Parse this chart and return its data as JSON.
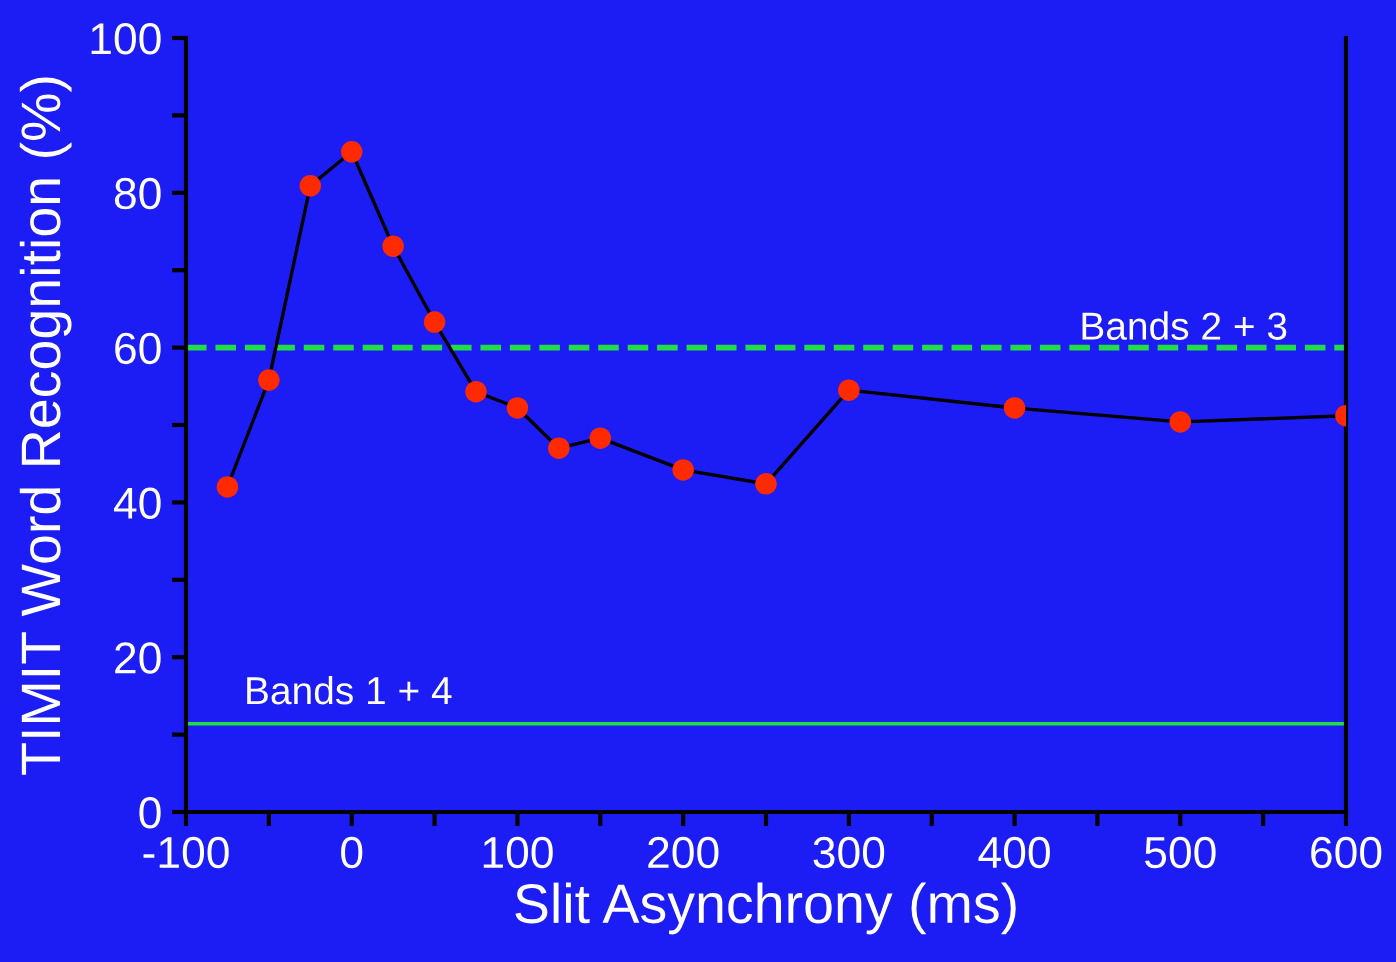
{
  "chart_data": {
    "type": "line",
    "xlabel": "Slit Asynchrony (ms)",
    "ylabel": "TIMIT Word Recognition (%)",
    "x": [
      -75,
      -50,
      -25,
      0,
      25,
      50,
      75,
      100,
      125,
      150,
      200,
      250,
      300,
      400,
      500,
      600
    ],
    "series": [
      {
        "color": "#ff2a00",
        "values": [
          42,
          55.8,
          80.9,
          85.3,
          73.1,
          63.3,
          54.3,
          52.2,
          47,
          48.3,
          44.2,
          42.4,
          54.5,
          52.2,
          50.4,
          51.2
        ]
      }
    ],
    "marker": "circle",
    "line_style": "solid",
    "grid": false,
    "legend": false,
    "xlim": [
      -100,
      600
    ],
    "ylim": [
      0,
      100
    ],
    "xticks": [
      -100,
      {
        "value": -50,
        "label": null
      },
      0,
      {
        "value": 50,
        "label": null
      },
      100,
      {
        "value": 150,
        "label": null
      },
      200,
      {
        "value": 250,
        "label": null
      },
      300,
      {
        "value": 350,
        "label": null
      },
      400,
      {
        "value": 450,
        "label": null
      },
      500,
      {
        "value": 550,
        "label": null
      },
      600
    ],
    "yticks": [
      0,
      {
        "value": 10,
        "label": null
      },
      20,
      {
        "value": 30,
        "label": null
      },
      40,
      {
        "value": 50,
        "label": null
      },
      60,
      {
        "value": 70,
        "label": null
      },
      80,
      {
        "value": 90,
        "label": null
      },
      100
    ],
    "ref_lines": [
      {
        "axis": "y",
        "value": 60,
        "label": "Bands 2 + 3",
        "color": "#22dd44",
        "line_style": "dashed"
      },
      {
        "axis": "y",
        "value": 11.4,
        "label": "Bands 1 + 4",
        "color": "#22dd44",
        "line_style": "solid"
      }
    ]
  }
}
